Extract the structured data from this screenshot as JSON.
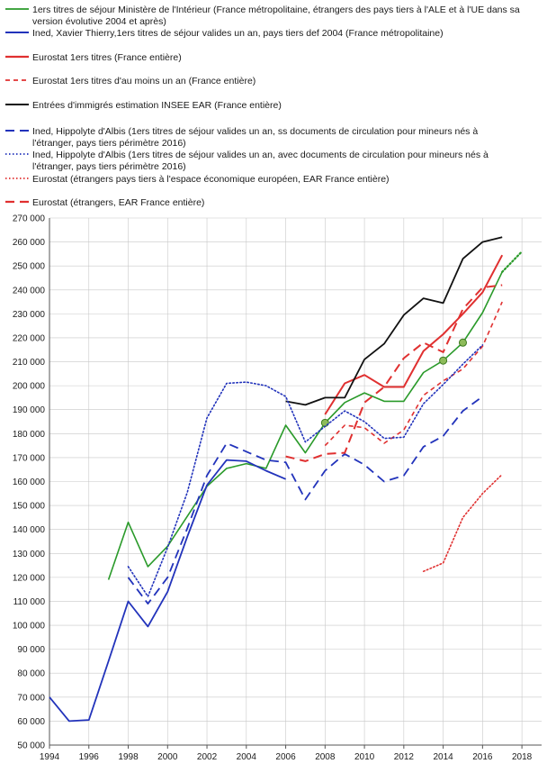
{
  "chart_data": {
    "type": "line",
    "title": "",
    "xlabel": "",
    "ylabel": "",
    "xlim": [
      1994,
      2019
    ],
    "ylim": [
      50000,
      270000
    ],
    "x_ticks": [
      1994,
      1996,
      1998,
      2000,
      2002,
      2004,
      2006,
      2008,
      2010,
      2012,
      2014,
      2016,
      2018
    ],
    "y_ticks": [
      50000,
      60000,
      70000,
      80000,
      90000,
      100000,
      110000,
      120000,
      130000,
      140000,
      150000,
      160000,
      170000,
      180000,
      190000,
      200000,
      210000,
      220000,
      230000,
      240000,
      250000,
      260000,
      270000
    ],
    "y_tick_labels": [
      "50 000",
      "60 000",
      "70 000",
      "80 000",
      "90 000",
      "100 000",
      "110 000",
      "120 000",
      "130 000",
      "140 000",
      "150 000",
      "160 000",
      "170 000",
      "180 000",
      "190 000",
      "200 000",
      "210 000",
      "220 000",
      "230 000",
      "240 000",
      "250 000",
      "260 000",
      "270 000"
    ],
    "grid": true,
    "legend_position": "top",
    "series": [
      {
        "name_lines": [
          "1ers titres de séjour Ministère  de l'Intérieur (France métropolitaine, étrangers des pays tiers à l'ALE et à l'UE dans sa",
          "version évolutive 2004 et après)"
        ],
        "color": "#2a9a2a",
        "style": "solid",
        "width": 1.6,
        "points": [
          [
            1997,
            119000
          ],
          [
            1998,
            143000
          ],
          [
            1999,
            124500
          ],
          [
            2000,
            133000
          ],
          [
            2001,
            145500
          ],
          [
            2002,
            158000
          ],
          [
            2003,
            165500
          ],
          [
            2004,
            167500
          ],
          [
            2005,
            165500
          ],
          [
            2006,
            183500
          ],
          [
            2007,
            172000
          ],
          [
            2008,
            184500
          ],
          [
            2009,
            193000
          ],
          [
            2010,
            197000
          ],
          [
            2011,
            193500
          ],
          [
            2012,
            193500
          ],
          [
            2013,
            205500
          ],
          [
            2014,
            210500
          ],
          [
            2015,
            218000
          ],
          [
            2016,
            230500
          ],
          [
            2017,
            247500
          ]
        ],
        "extension_style": "dotted",
        "extension_points": [
          [
            2017,
            247500
          ],
          [
            2018,
            256000
          ]
        ],
        "markers": [
          [
            2008,
            184500
          ],
          [
            2014,
            210500
          ],
          [
            2015,
            218000
          ]
        ]
      },
      {
        "name_lines": [
          "Ined, Xavier Thierry,1ers titres de séjour valides un an, pays tiers def 2004 (France métropolitaine)"
        ],
        "color": "#2233bb",
        "style": "solid",
        "width": 1.8,
        "points": [
          [
            1994,
            70000
          ],
          [
            1995,
            60000
          ],
          [
            1996,
            60500
          ],
          [
            1997,
            85000
          ],
          [
            1998,
            110000
          ],
          [
            1999,
            99500
          ],
          [
            2000,
            114000
          ],
          [
            2001,
            137000
          ],
          [
            2002,
            158500
          ],
          [
            2003,
            169000
          ],
          [
            2004,
            168500
          ],
          [
            2005,
            164500
          ],
          [
            2006,
            161000
          ]
        ]
      },
      {
        "name_lines": [
          "Eurostat 1ers titres (France entière)"
        ],
        "color": "#e03030",
        "style": "solid",
        "width": 2.0,
        "points": [
          [
            2008,
            188000
          ],
          [
            2009,
            201000
          ],
          [
            2010,
            204500
          ],
          [
            2011,
            199500
          ],
          [
            2012,
            199500
          ],
          [
            2013,
            214500
          ],
          [
            2014,
            221500
          ],
          [
            2015,
            230000
          ],
          [
            2016,
            239000
          ],
          [
            2017,
            254500
          ]
        ]
      },
      {
        "name_lines": [
          "Eurostat 1ers titres d'au moins un an (France entière)"
        ],
        "color": "#e03030",
        "style": "dashed-short",
        "width": 1.6,
        "points": [
          [
            2008,
            175000
          ],
          [
            2009,
            183500
          ],
          [
            2010,
            182500
          ],
          [
            2011,
            176000
          ],
          [
            2012,
            181500
          ],
          [
            2013,
            196000
          ],
          [
            2014,
            202000
          ],
          [
            2015,
            207000
          ],
          [
            2016,
            216500
          ],
          [
            2017,
            235000
          ]
        ]
      },
      {
        "name_lines": [
          "Entrées d'immigrés estimation INSEE EAR (France entière)"
        ],
        "color": "#111111",
        "style": "solid",
        "width": 1.8,
        "points": [
          [
            2006,
            193500
          ],
          [
            2007,
            192000
          ],
          [
            2008,
            195000
          ],
          [
            2009,
            195000
          ],
          [
            2010,
            211000
          ],
          [
            2011,
            217500
          ],
          [
            2012,
            229500
          ],
          [
            2013,
            236500
          ],
          [
            2014,
            234500
          ],
          [
            2015,
            253000
          ],
          [
            2016,
            260000
          ],
          [
            2017,
            262000
          ]
        ]
      },
      {
        "name_lines": [
          "Ined, Hippolyte d'Albis (1ers titres de séjour valides un an, ss documents de circulation pour mineurs nés à",
          "l'étranger, pays tiers périmètre 2016)"
        ],
        "color": "#2233bb",
        "style": "dashed-long",
        "width": 1.8,
        "points": [
          [
            1998,
            120000
          ],
          [
            1999,
            109000
          ],
          [
            2000,
            120000
          ],
          [
            2001,
            140500
          ],
          [
            2002,
            162500
          ],
          [
            2003,
            176000
          ],
          [
            2004,
            172500
          ],
          [
            2005,
            169000
          ],
          [
            2006,
            168000
          ],
          [
            2007,
            152500
          ],
          [
            2008,
            164500
          ],
          [
            2009,
            171500
          ],
          [
            2010,
            167000
          ],
          [
            2011,
            160000
          ],
          [
            2012,
            162500
          ],
          [
            2013,
            174500
          ],
          [
            2014,
            179000
          ],
          [
            2015,
            189500
          ],
          [
            2016,
            195500
          ]
        ]
      },
      {
        "name_lines": [
          "Ined, Hippolyte d'Albis (1ers titres de séjour valides un an, avec documents de circulation pour mineurs nés à",
          "l'étranger, pays tiers périmètre 2016)"
        ],
        "color": "#2233bb",
        "style": "dotted",
        "width": 1.6,
        "points": [
          [
            1998,
            124500
          ],
          [
            1999,
            112000
          ],
          [
            2000,
            132500
          ],
          [
            2001,
            155500
          ],
          [
            2002,
            186500
          ],
          [
            2003,
            201000
          ],
          [
            2004,
            201500
          ],
          [
            2005,
            200000
          ],
          [
            2006,
            195500
          ],
          [
            2007,
            176500
          ],
          [
            2008,
            183000
          ],
          [
            2009,
            189500
          ],
          [
            2010,
            185000
          ],
          [
            2011,
            178000
          ],
          [
            2012,
            178500
          ],
          [
            2013,
            192500
          ],
          [
            2014,
            200500
          ],
          [
            2015,
            209000
          ],
          [
            2016,
            217000
          ]
        ]
      },
      {
        "name_lines": [
          "Eurostat (étrangers pays tiers à l'espace économique européen, EAR France entière)"
        ],
        "color": "#e03030",
        "style": "dotted",
        "width": 1.6,
        "points": [
          [
            2013,
            122500
          ],
          [
            2014,
            126000
          ],
          [
            2015,
            145000
          ],
          [
            2016,
            155000
          ],
          [
            2017,
            163000
          ]
        ]
      },
      {
        "name_lines": [
          "Eurostat (étrangers,  EAR France entière)"
        ],
        "color": "#e03030",
        "style": "dashed-long",
        "width": 2.0,
        "points": [
          [
            2006,
            170500
          ],
          [
            2007,
            168500
          ],
          [
            2008,
            171500
          ],
          [
            2009,
            172000
          ],
          [
            2010,
            193000
          ],
          [
            2011,
            199500
          ],
          [
            2012,
            211500
          ],
          [
            2013,
            218000
          ],
          [
            2014,
            214000
          ],
          [
            2015,
            232000
          ],
          [
            2016,
            241000
          ],
          [
            2017,
            242000
          ]
        ]
      }
    ]
  }
}
